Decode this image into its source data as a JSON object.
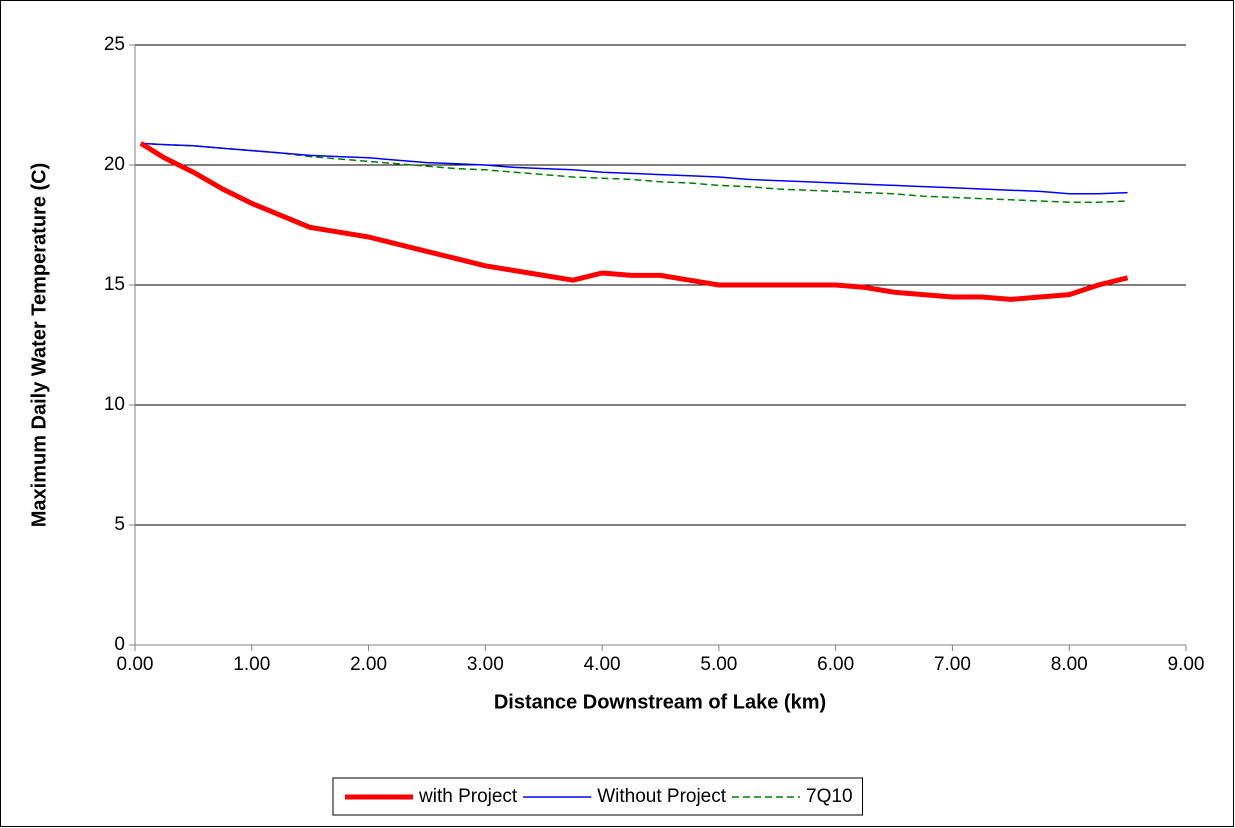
{
  "chart_data": {
    "type": "line",
    "x_label": "Distance Downstream of Lake (km)",
    "y_label": "Maximum Daily Water Temperature (C)",
    "x": [
      0.05,
      0.25,
      0.5,
      0.75,
      1.0,
      1.25,
      1.5,
      1.75,
      2.0,
      2.25,
      2.5,
      2.75,
      3.0,
      3.25,
      3.5,
      3.75,
      4.0,
      4.25,
      4.5,
      4.75,
      5.0,
      5.25,
      5.5,
      5.75,
      6.0,
      6.25,
      6.5,
      6.75,
      7.0,
      7.25,
      7.5,
      7.75,
      8.0,
      8.25,
      8.5
    ],
    "series": [
      {
        "name": "with Project",
        "color": "#ff0000",
        "values": [
          20.9,
          20.3,
          19.7,
          19.0,
          18.4,
          17.9,
          17.4,
          17.2,
          17.0,
          16.7,
          16.4,
          16.1,
          15.8,
          15.6,
          15.4,
          15.2,
          15.5,
          15.4,
          15.4,
          15.2,
          15.0,
          15.0,
          15.0,
          15.0,
          15.0,
          14.9,
          14.7,
          14.6,
          14.5,
          14.5,
          14.4,
          14.5,
          14.6,
          15.0,
          15.3
        ]
      },
      {
        "name": "Without Project",
        "color": "#0000ff",
        "values": [
          20.9,
          20.85,
          20.8,
          20.7,
          20.6,
          20.5,
          20.4,
          20.35,
          20.3,
          20.2,
          20.1,
          20.05,
          20.0,
          19.9,
          19.85,
          19.8,
          19.7,
          19.65,
          19.6,
          19.55,
          19.5,
          19.4,
          19.35,
          19.3,
          19.25,
          19.2,
          19.15,
          19.1,
          19.05,
          19.0,
          18.95,
          18.9,
          18.8,
          18.8,
          18.85
        ]
      },
      {
        "name": "7Q10",
        "color": "#008000",
        "dashed": true,
        "values": [
          20.9,
          20.85,
          20.8,
          20.7,
          20.6,
          20.5,
          20.35,
          20.25,
          20.15,
          20.05,
          19.95,
          19.85,
          19.8,
          19.7,
          19.6,
          19.5,
          19.45,
          19.4,
          19.3,
          19.25,
          19.15,
          19.1,
          19.0,
          18.95,
          18.9,
          18.85,
          18.8,
          18.7,
          18.65,
          18.6,
          18.55,
          18.5,
          18.45,
          18.45,
          18.5
        ]
      }
    ],
    "xlim": [
      0,
      9
    ],
    "xticks": [
      {
        "value": 0,
        "label": "0.00"
      },
      {
        "value": 1,
        "label": "1.00"
      },
      {
        "value": 2,
        "label": "2.00"
      },
      {
        "value": 3,
        "label": "3.00"
      },
      {
        "value": 4,
        "label": "4.00"
      },
      {
        "value": 5,
        "label": "5.00"
      },
      {
        "value": 6,
        "label": "6.00"
      },
      {
        "value": 7,
        "label": "7.00"
      },
      {
        "value": 8,
        "label": "8.00"
      },
      {
        "value": 9,
        "label": "9.00"
      }
    ],
    "ylim": [
      0,
      25
    ],
    "yticks": [
      0,
      5,
      10,
      15,
      20,
      25
    ],
    "grid": true,
    "legend": "bottom"
  }
}
